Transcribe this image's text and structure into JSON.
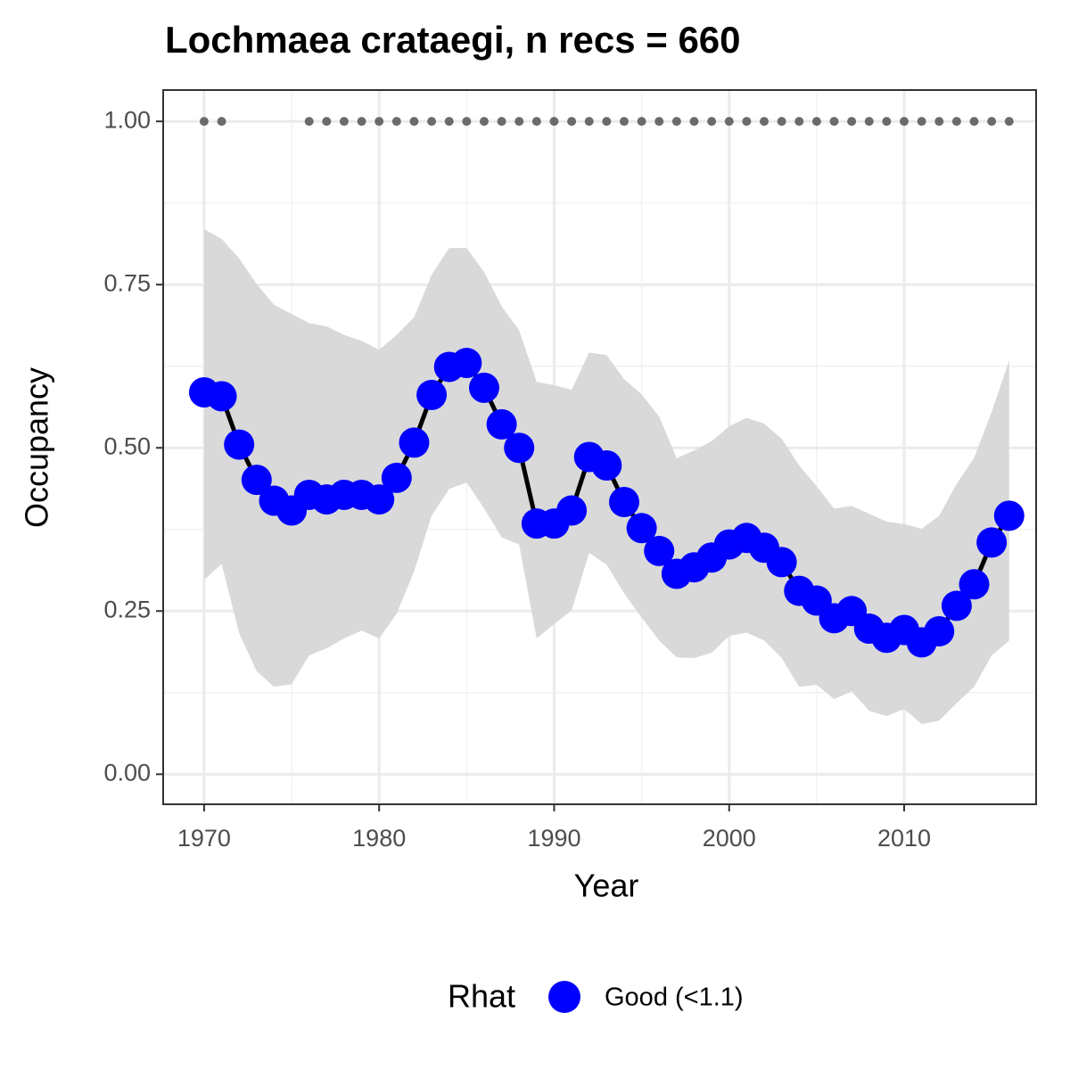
{
  "chart_data": {
    "type": "line",
    "title": "Lochmaea crataegi, n recs = 660",
    "x_label": "Year",
    "y_label": "Occupancy",
    "x": [
      1970,
      1971,
      1972,
      1973,
      1974,
      1975,
      1976,
      1977,
      1978,
      1979,
      1980,
      1981,
      1982,
      1983,
      1984,
      1985,
      1986,
      1987,
      1988,
      1989,
      1990,
      1991,
      1992,
      1993,
      1994,
      1995,
      1996,
      1997,
      1998,
      1999,
      2000,
      2001,
      2002,
      2003,
      2004,
      2005,
      2006,
      2007,
      2008,
      2009,
      2010,
      2011,
      2012,
      2013,
      2014,
      2015,
      2016
    ],
    "series": [
      {
        "name": "Good (<1.1)",
        "color": "#0000ff",
        "line_color": "#000000",
        "values": [
          0.585,
          0.579,
          0.505,
          0.451,
          0.419,
          0.404,
          0.428,
          0.421,
          0.428,
          0.428,
          0.421,
          0.454,
          0.508,
          0.581,
          0.624,
          0.63,
          0.592,
          0.536,
          0.5,
          0.384,
          0.384,
          0.404,
          0.486,
          0.473,
          0.417,
          0.377,
          0.342,
          0.307,
          0.317,
          0.332,
          0.352,
          0.362,
          0.347,
          0.325,
          0.281,
          0.266,
          0.239,
          0.25,
          0.223,
          0.209,
          0.221,
          0.202,
          0.219,
          0.258,
          0.291,
          0.355,
          0.396
        ],
        "lower": [
          0.298,
          0.322,
          0.216,
          0.158,
          0.134,
          0.138,
          0.182,
          0.193,
          0.208,
          0.22,
          0.208,
          0.246,
          0.311,
          0.396,
          0.437,
          0.447,
          0.407,
          0.363,
          0.352,
          0.208,
          0.23,
          0.251,
          0.339,
          0.321,
          0.277,
          0.24,
          0.205,
          0.179,
          0.178,
          0.186,
          0.212,
          0.217,
          0.205,
          0.178,
          0.134,
          0.137,
          0.115,
          0.127,
          0.097,
          0.089,
          0.1,
          0.077,
          0.082,
          0.109,
          0.134,
          0.182,
          0.205
        ],
        "upper": [
          0.835,
          0.82,
          0.79,
          0.751,
          0.719,
          0.705,
          0.691,
          0.686,
          0.673,
          0.664,
          0.65,
          0.673,
          0.7,
          0.765,
          0.806,
          0.806,
          0.769,
          0.717,
          0.68,
          0.601,
          0.596,
          0.589,
          0.646,
          0.642,
          0.605,
          0.582,
          0.548,
          0.484,
          0.496,
          0.51,
          0.533,
          0.546,
          0.537,
          0.514,
          0.473,
          0.441,
          0.407,
          0.411,
          0.399,
          0.387,
          0.383,
          0.376,
          0.396,
          0.445,
          0.485,
          0.555,
          0.634
        ],
        "band_color": "#d9d9d9"
      }
    ],
    "detections": {
      "color": "#6b6b6b",
      "x": [
        1970,
        1971,
        1976,
        1977,
        1978,
        1979,
        1980,
        1981,
        1982,
        1983,
        1984,
        1985,
        1986,
        1987,
        1988,
        1989,
        1990,
        1991,
        1992,
        1993,
        1994,
        1995,
        1996,
        1997,
        1998,
        1999,
        2000,
        2001,
        2002,
        2003,
        2004,
        2005,
        2006,
        2007,
        2008,
        2009,
        2010,
        2011,
        2012,
        2013,
        2014,
        2015,
        2016
      ],
      "values": [
        1,
        1,
        1,
        1,
        1,
        1,
        1,
        1,
        1,
        1,
        1,
        1,
        1,
        1,
        1,
        1,
        1,
        1,
        1,
        1,
        1,
        1,
        1,
        1,
        1,
        1,
        1,
        1,
        1,
        1,
        1,
        1,
        1,
        1,
        1,
        1,
        1,
        1,
        1,
        1,
        1,
        1,
        1
      ]
    },
    "xlim": [
      1967.66,
      2017.54
    ],
    "ylim": [
      -0.046,
      1.048
    ],
    "xticks": [
      1970,
      1980,
      1990,
      2000,
      2010
    ],
    "yticks": [
      {
        "value": 0,
        "label": "0.00"
      },
      {
        "value": 0.25,
        "label": "0.25"
      },
      {
        "value": 0.5,
        "label": "0.50"
      },
      {
        "value": 0.75,
        "label": "0.75"
      },
      {
        "value": 1,
        "label": "1.00"
      }
    ],
    "grid": true,
    "legend_title": "Rhat",
    "legend_position": "bottom"
  }
}
